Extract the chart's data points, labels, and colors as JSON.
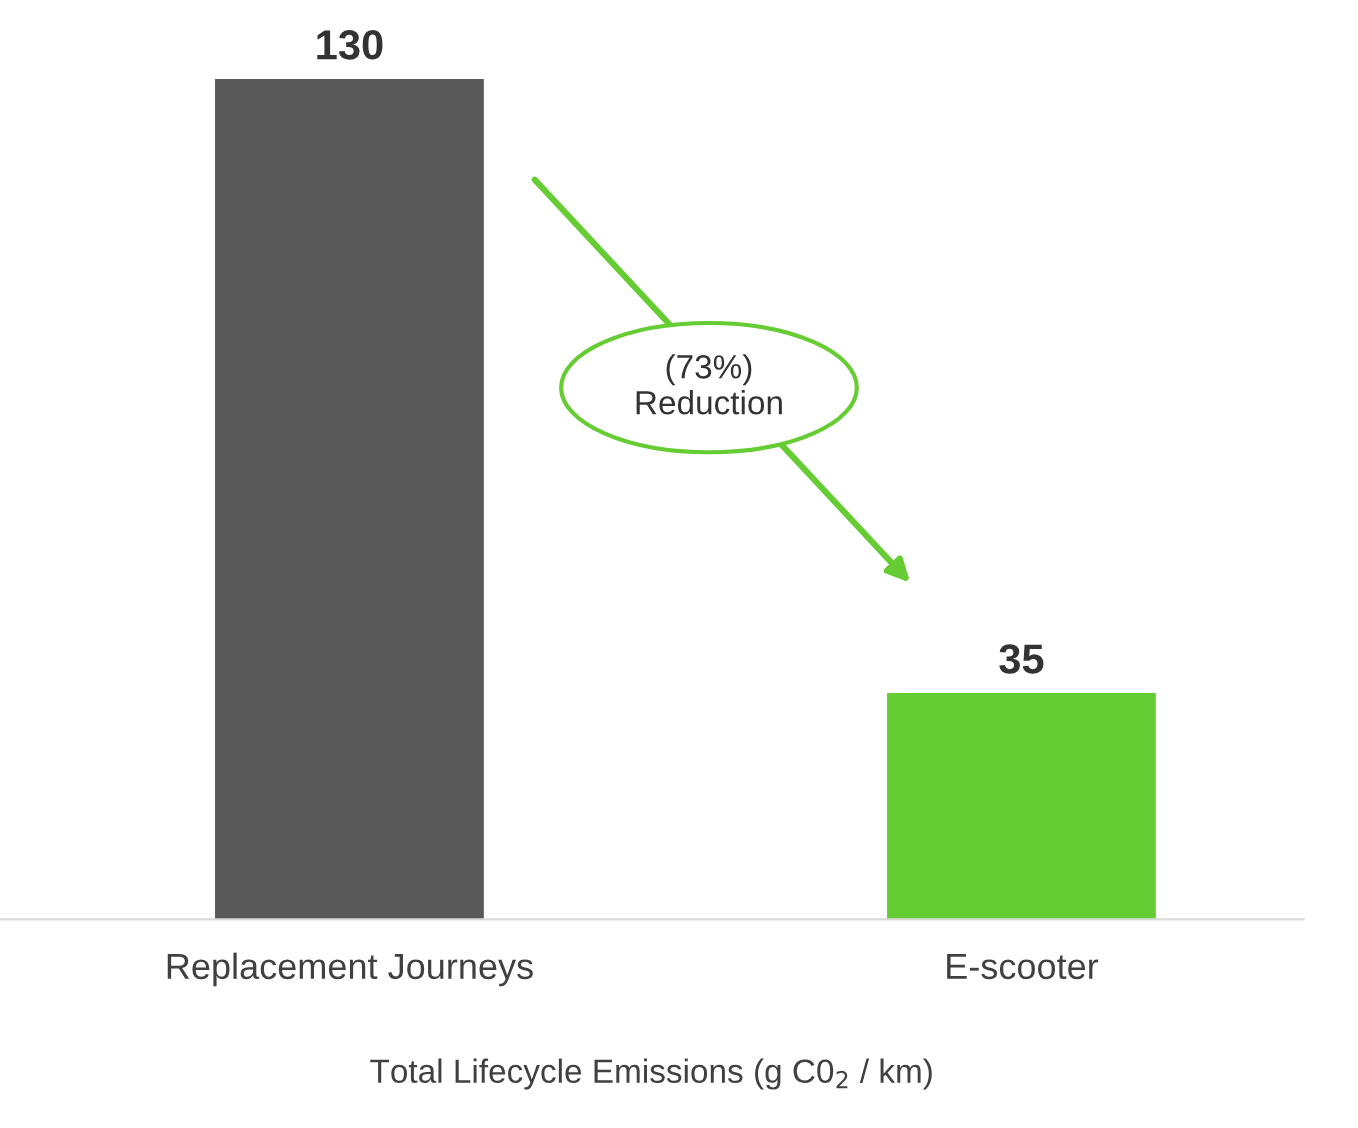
{
  "chart_data": {
    "type": "bar",
    "xlabel": "Total Lifecycle Emissions (g C0$_{2}$ / km)",
    "categories": [
      "Replacement Journeys",
      "E-scooter"
    ],
    "values": [
      130,
      35
    ],
    "colors": [
      "#595959",
      "#66cc33"
    ],
    "data_labels": true,
    "grid": false,
    "tick_labels": "x",
    "annotations": [
      "(73%)\nReduction"
    ]
  }
}
